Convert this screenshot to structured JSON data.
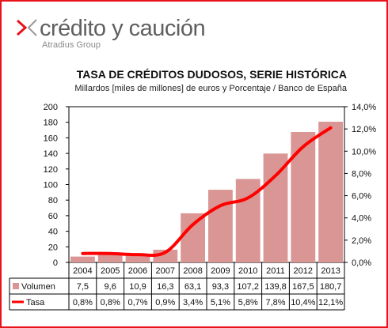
{
  "brand": {
    "name": "crédito y caución",
    "subtitle": "Atradius Group",
    "mark_colors": [
      "#e8141c",
      "#9a9a9a"
    ]
  },
  "chart_data": {
    "type": "bar",
    "title": "TASA DE CRÉDITOS DUDOSOS, SERIE HISTÓRICA",
    "subtitle": "Millardos [miles de millones]  de euros y Porcentaje / Banco de España",
    "categories": [
      "2004",
      "2005",
      "2006",
      "2007",
      "2008",
      "2009",
      "2010",
      "2011",
      "2012",
      "2013"
    ],
    "series": [
      {
        "name": "Volumen",
        "type": "bar",
        "axis": "left",
        "color": "#d99694",
        "values": [
          7.5,
          9.6,
          10.9,
          16.3,
          63.1,
          93.3,
          107.2,
          139.8,
          167.5,
          180.7
        ],
        "labels": [
          "7,5",
          "9,6",
          "10,9",
          "16,3",
          "63,1",
          "93,3",
          "107,2",
          "139,8",
          "167,5",
          "180,7"
        ]
      },
      {
        "name": "Tasa",
        "type": "line",
        "axis": "right",
        "color": "#ff0000",
        "values": [
          0.8,
          0.8,
          0.7,
          0.9,
          3.4,
          5.1,
          5.8,
          7.8,
          10.4,
          12.1
        ],
        "labels": [
          "0,8%",
          "0,8%",
          "0,7%",
          "0,9%",
          "3,4%",
          "5,1%",
          "5,8%",
          "7,8%",
          "10,4%",
          "12,1%"
        ]
      }
    ],
    "y_left": {
      "min": 0,
      "max": 200,
      "step": 20,
      "ticks": [
        "0",
        "20",
        "40",
        "60",
        "80",
        "100",
        "120",
        "140",
        "160",
        "180",
        "200"
      ]
    },
    "y_right": {
      "min": 0,
      "max": 14,
      "step": 2,
      "ticks": [
        "0,0%",
        "2,0%",
        "4,0%",
        "6,0%",
        "8,0%",
        "10,0%",
        "12,0%",
        "14,0%"
      ]
    },
    "grid": false,
    "legend": "data-table"
  }
}
